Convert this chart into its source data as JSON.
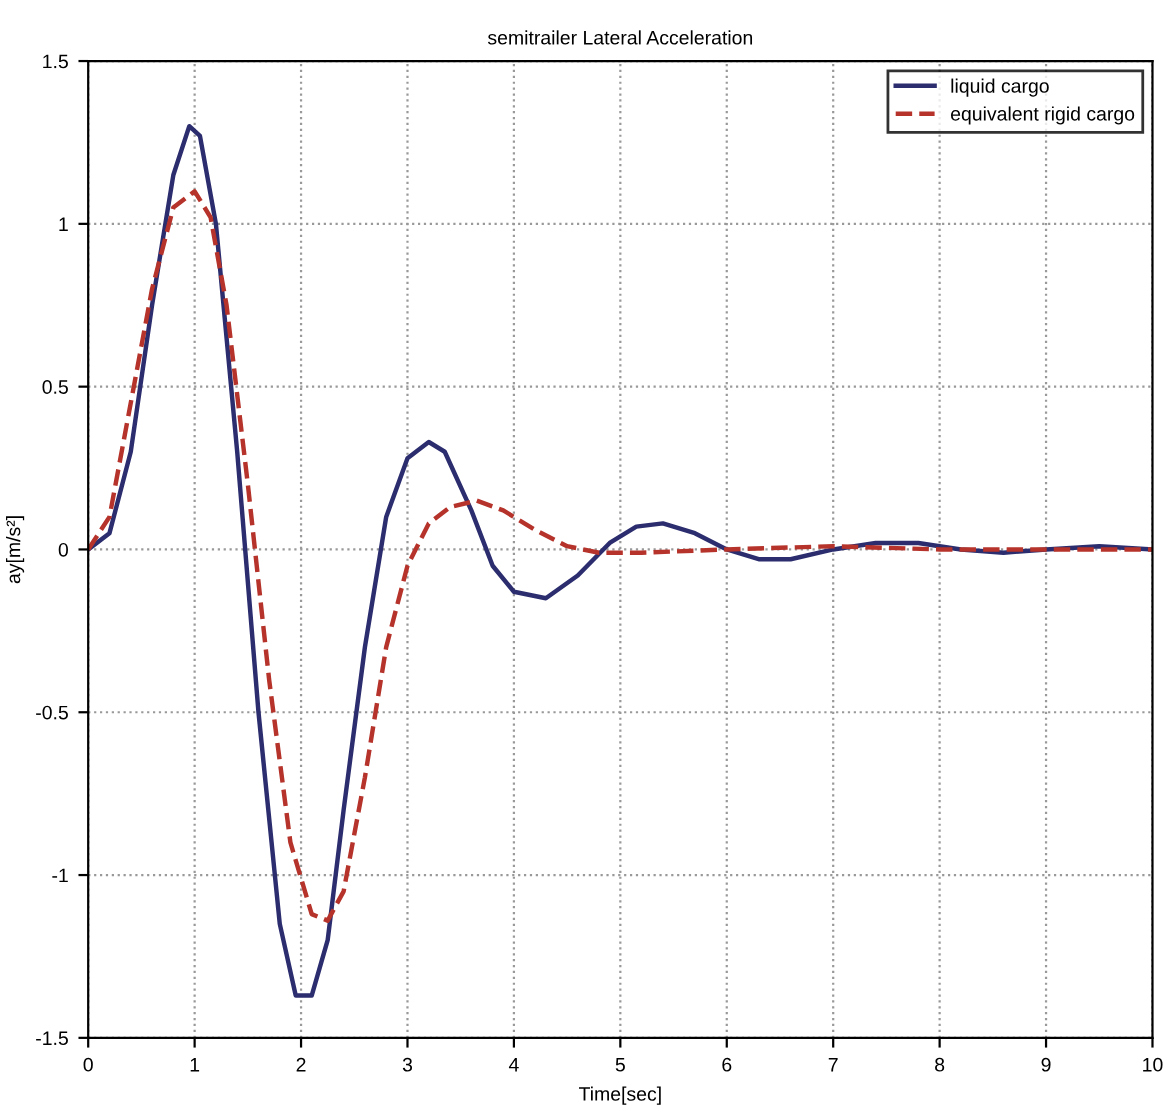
{
  "chart_data": {
    "type": "line",
    "title": "semitrailer Lateral Acceleration",
    "xlabel": "Time[sec]",
    "ylabel": "ay[m/s²]",
    "xlim": [
      0,
      10
    ],
    "xticks": [
      0,
      1,
      2,
      3,
      4,
      5,
      6,
      7,
      8,
      9,
      10
    ],
    "ylim": [
      -1.5,
      1.5
    ],
    "yticks": [
      -1.5,
      -1,
      -0.5,
      0,
      0.5,
      1,
      1.5
    ],
    "grid": true,
    "legend": "top right",
    "series": [
      {
        "name": "liquid cargo",
        "color": "#2b2d6e",
        "line_style": "solid",
        "x": [
          0,
          0.2,
          0.4,
          0.6,
          0.8,
          0.95,
          1.05,
          1.2,
          1.4,
          1.6,
          1.8,
          1.95,
          2.1,
          2.25,
          2.4,
          2.6,
          2.8,
          3.0,
          3.2,
          3.35,
          3.6,
          3.8,
          4.0,
          4.3,
          4.6,
          4.9,
          5.15,
          5.4,
          5.7,
          6.0,
          6.3,
          6.6,
          7.0,
          7.4,
          7.8,
          8.2,
          8.6,
          9.0,
          9.5,
          10
        ],
        "values": [
          0,
          0.05,
          0.3,
          0.75,
          1.15,
          1.3,
          1.27,
          1.0,
          0.3,
          -0.5,
          -1.15,
          -1.37,
          -1.37,
          -1.2,
          -0.8,
          -0.3,
          0.1,
          0.28,
          0.33,
          0.3,
          0.12,
          -0.05,
          -0.13,
          -0.15,
          -0.08,
          0.02,
          0.07,
          0.08,
          0.05,
          0.0,
          -0.03,
          -0.03,
          0.0,
          0.02,
          0.02,
          0.0,
          -0.01,
          0.0,
          0.01,
          0.0
        ]
      },
      {
        "name": "equivalent rigid cargo",
        "color": "#b5332a",
        "line_style": "dashed",
        "x": [
          0,
          0.2,
          0.4,
          0.6,
          0.8,
          1.0,
          1.15,
          1.3,
          1.5,
          1.7,
          1.9,
          2.1,
          2.25,
          2.4,
          2.6,
          2.8,
          3.0,
          3.2,
          3.4,
          3.65,
          3.9,
          4.2,
          4.5,
          4.8,
          5.2,
          6,
          7,
          8,
          9,
          10
        ],
        "values": [
          0,
          0.1,
          0.45,
          0.8,
          1.05,
          1.1,
          1.02,
          0.75,
          0.2,
          -0.4,
          -0.9,
          -1.12,
          -1.14,
          -1.05,
          -0.7,
          -0.3,
          -0.05,
          0.08,
          0.13,
          0.15,
          0.12,
          0.06,
          0.01,
          -0.01,
          -0.01,
          0.0,
          0.01,
          0.0,
          0.0,
          0.0
        ]
      }
    ]
  }
}
